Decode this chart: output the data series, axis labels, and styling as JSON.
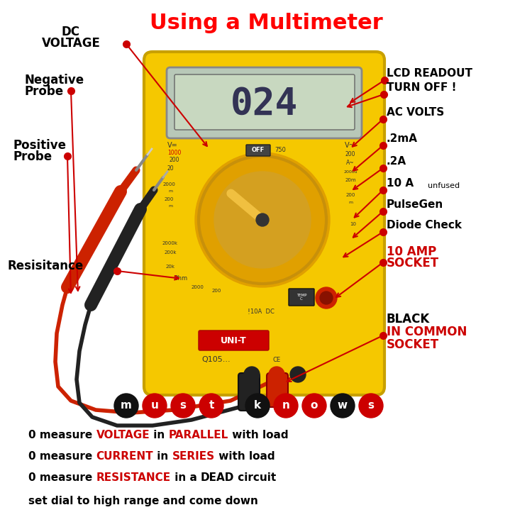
{
  "title": "Using a Multimeter",
  "title_color": "#ff0000",
  "title_fontsize": 22,
  "bg_color": "#ffffff",
  "arrow_color": "#cc0000",
  "dot_color": "#cc0000",
  "multimeter_body_color": "#f5c800",
  "multimeter_edge_color": "#c8a000",
  "lcd_bg_color": "#b8c8b8",
  "lcd_inner_color": "#c8d8c0",
  "lcd_text": "024",
  "lcd_text_color": "#333355",
  "dial_color": "#e0a000",
  "dial_ring_color": "#c8900a",
  "dial_inner_color": "#d4a020",
  "dial_pointer_color": "#f0c040",
  "off_box_color": "#444444",
  "must_knows_letters": [
    "m",
    "u",
    "s",
    "t",
    "k",
    "n",
    "o",
    "w",
    "s"
  ],
  "must_knows_red_indices": [
    1,
    2,
    3,
    5,
    6,
    8
  ],
  "bottom_lines": [
    [
      {
        "text": "0 measure ",
        "color": "#000000"
      },
      {
        "text": "VOLTAGE",
        "color": "#cc0000"
      },
      {
        "text": " in ",
        "color": "#000000"
      },
      {
        "text": "PARALLEL",
        "color": "#cc0000"
      },
      {
        "text": " with load",
        "color": "#000000"
      }
    ],
    [
      {
        "text": "0 measure ",
        "color": "#000000"
      },
      {
        "text": "CURRENT",
        "color": "#cc0000"
      },
      {
        "text": " in ",
        "color": "#000000"
      },
      {
        "text": "SERIES",
        "color": "#cc0000"
      },
      {
        "text": " with load",
        "color": "#000000"
      }
    ],
    [
      {
        "text": "0 measure ",
        "color": "#000000"
      },
      {
        "text": "RESISTANCE",
        "color": "#cc0000"
      },
      {
        "text": " in a ",
        "color": "#000000"
      },
      {
        "text": "DEAD",
        "color": "#000000"
      },
      {
        "text": " circuit",
        "color": "#000000"
      }
    ],
    [
      {
        "text": "set dial to high range and come down",
        "color": "#000000"
      }
    ]
  ]
}
